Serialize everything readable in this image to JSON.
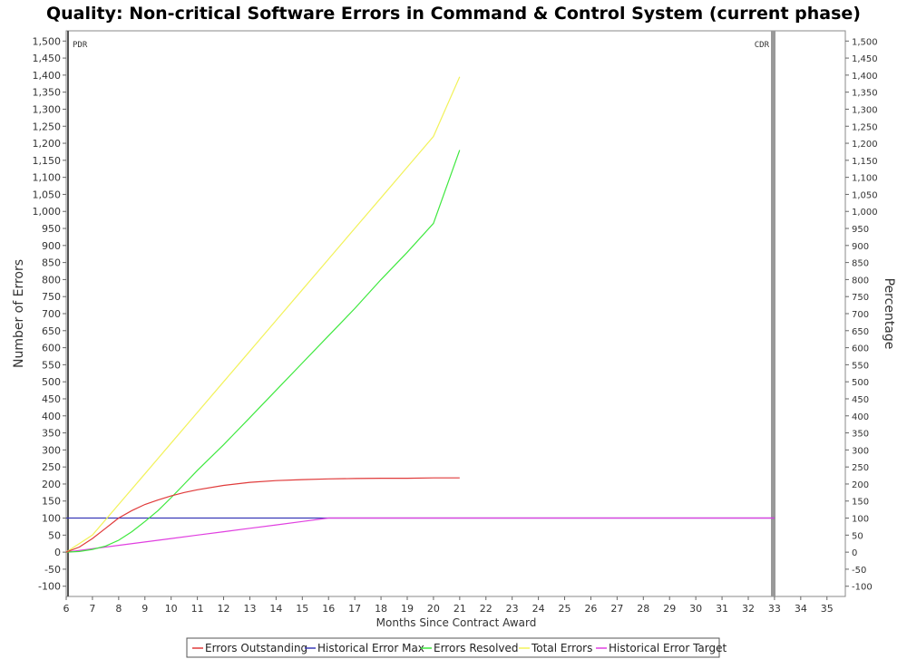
{
  "chart_data": {
    "type": "line",
    "title": "Quality: Non-critical Software Errors in Command & Control System (current phase)",
    "xlabel": "Months Since Contract Award",
    "ylabel": "Number of Errors",
    "ylabel_right": "Percentage",
    "xlim": [
      6,
      35.7
    ],
    "ylim": [
      -130,
      1530
    ],
    "x_ticks": [
      6,
      7,
      8,
      9,
      10,
      11,
      12,
      13,
      14,
      15,
      16,
      17,
      18,
      19,
      20,
      21,
      22,
      23,
      24,
      25,
      26,
      27,
      28,
      29,
      30,
      31,
      32,
      33,
      34,
      35
    ],
    "y_ticks": [
      -100,
      -50,
      0,
      50,
      100,
      150,
      200,
      250,
      300,
      350,
      400,
      450,
      500,
      550,
      600,
      650,
      700,
      750,
      800,
      850,
      900,
      950,
      1000,
      1050,
      1100,
      1150,
      1200,
      1250,
      1300,
      1350,
      1400,
      1450,
      1500
    ],
    "y_tick_labels": [
      "-100",
      "-50",
      "0",
      "50",
      "100",
      "150",
      "200",
      "250",
      "300",
      "350",
      "400",
      "450",
      "500",
      "550",
      "600",
      "650",
      "700",
      "750",
      "800",
      "850",
      "900",
      "950",
      "1,000",
      "1,050",
      "1,100",
      "1,150",
      "1,200",
      "1,250",
      "1,300",
      "1,350",
      "1,400",
      "1,450",
      "1,500"
    ],
    "y_tick_labels_right": [
      "-100",
      "-50",
      "0",
      "50",
      "100",
      "150",
      "200",
      "250",
      "300",
      "350",
      "400",
      "450",
      "500",
      "550",
      "600",
      "650",
      "700",
      "750",
      "800",
      "850",
      "900",
      "950",
      "1,000",
      "1,050",
      "1,100",
      "1,150",
      "1,200",
      "1,250",
      "1,300",
      "1,350",
      "1,400",
      "1,450",
      "1,500"
    ],
    "grid": false,
    "legend_position": "bottom",
    "markers": [
      {
        "label": "PDR",
        "x": 6
      },
      {
        "label": "CDR",
        "x": 33
      }
    ],
    "series": [
      {
        "name": "Errors Outstanding",
        "color": "#e03a3a",
        "x": [
          6,
          6.5,
          7,
          7.5,
          8,
          8.5,
          9,
          9.5,
          10,
          10.5,
          11,
          12,
          13,
          14,
          15,
          16,
          17,
          18,
          19,
          20,
          21
        ],
        "y": [
          0,
          15,
          40,
          70,
          100,
          122,
          140,
          153,
          165,
          175,
          183,
          196,
          205,
          210,
          213,
          215,
          216,
          217,
          217,
          218,
          218
        ]
      },
      {
        "name": "Historical Error Max",
        "color": "#3a3ab8",
        "x": [
          6,
          33
        ],
        "y": [
          100,
          100
        ]
      },
      {
        "name": "Errors Resolved",
        "color": "#3ee83e",
        "x": [
          6,
          6.5,
          7,
          7.5,
          8,
          8.5,
          9,
          9.5,
          10,
          10.5,
          11,
          12,
          13,
          14,
          15,
          16,
          17,
          18,
          19,
          20,
          21
        ],
        "y": [
          0,
          2,
          8,
          18,
          35,
          60,
          90,
          122,
          160,
          200,
          240,
          315,
          395,
          475,
          555,
          635,
          715,
          800,
          880,
          965,
          1180
        ]
      },
      {
        "name": "Total Errors",
        "color": "#f2f25a",
        "x": [
          6,
          7,
          8,
          9,
          10,
          11,
          12,
          13,
          14,
          15,
          16,
          17,
          18,
          19,
          20,
          21
        ],
        "y": [
          0,
          50,
          140,
          230,
          320,
          410,
          500,
          590,
          680,
          770,
          860,
          950,
          1040,
          1130,
          1220,
          1395
        ]
      },
      {
        "name": "Historical Error Target",
        "color": "#e040e0",
        "x": [
          6,
          7,
          8,
          9,
          10,
          11,
          12,
          13,
          14,
          15,
          16,
          21,
          33
        ],
        "y": [
          0,
          10,
          20,
          30,
          40,
          50,
          60,
          70,
          80,
          90,
          100,
          100,
          100
        ]
      }
    ]
  }
}
